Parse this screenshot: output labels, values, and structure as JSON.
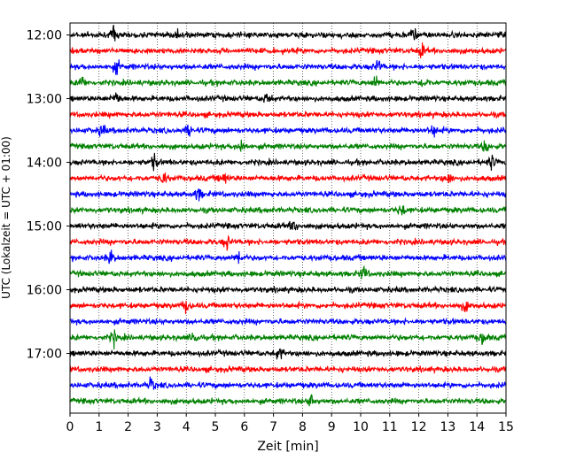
{
  "chart_data": {
    "type": "line",
    "xlabel": "Zeit  [min]",
    "ylabel": "UTC (Lokalzeit = UTC + 01:00)",
    "xlim": [
      0,
      15
    ],
    "x_ticks": [
      "0",
      "1",
      "2",
      "3",
      "4",
      "5",
      "6",
      "7",
      "8",
      "9",
      "10",
      "11",
      "12",
      "13",
      "14",
      "15"
    ],
    "y_ticks": [
      "12:00",
      "13:00",
      "14:00",
      "15:00",
      "16:00",
      "17:00"
    ],
    "grid": "vertical dotted",
    "trace_colors": [
      "#000000",
      "#ff0000",
      "#0000ff",
      "#008000"
    ],
    "traces": [
      {
        "start": "12:00",
        "color": "#000000",
        "events_min": [
          1.5,
          3.7,
          11.8
        ]
      },
      {
        "start": "12:15",
        "color": "#ff0000",
        "events_min": [
          12.1
        ]
      },
      {
        "start": "12:30",
        "color": "#0000ff",
        "events_min": [
          1.6,
          10.6
        ]
      },
      {
        "start": "12:45",
        "color": "#008000",
        "events_min": [
          0.4,
          10.5,
          12.2
        ]
      },
      {
        "start": "13:00",
        "color": "#000000",
        "events_min": [
          1.6,
          6.8
        ]
      },
      {
        "start": "13:15",
        "color": "#ff0000",
        "events_min": []
      },
      {
        "start": "13:30",
        "color": "#0000ff",
        "events_min": [
          1.1,
          4.1,
          12.5
        ]
      },
      {
        "start": "13:45",
        "color": "#008000",
        "events_min": [
          5.9,
          14.3
        ]
      },
      {
        "start": "14:00",
        "color": "#000000",
        "events_min": [
          2.9,
          14.5
        ]
      },
      {
        "start": "14:15",
        "color": "#ff0000",
        "events_min": [
          3.2,
          5.3,
          13.0
        ]
      },
      {
        "start": "14:30",
        "color": "#0000ff",
        "events_min": [
          4.4
        ]
      },
      {
        "start": "14:45",
        "color": "#008000",
        "events_min": [
          11.4
        ]
      },
      {
        "start": "15:00",
        "color": "#000000",
        "events_min": [
          7.7
        ]
      },
      {
        "start": "15:15",
        "color": "#ff0000",
        "events_min": [
          5.4
        ]
      },
      {
        "start": "15:30",
        "color": "#0000ff",
        "events_min": [
          1.4,
          5.8
        ]
      },
      {
        "start": "15:45",
        "color": "#008000",
        "events_min": [
          10.1
        ]
      },
      {
        "start": "16:00",
        "color": "#000000",
        "events_min": []
      },
      {
        "start": "16:15",
        "color": "#ff0000",
        "events_min": [
          4.0,
          13.6
        ]
      },
      {
        "start": "16:30",
        "color": "#0000ff",
        "events_min": []
      },
      {
        "start": "16:45",
        "color": "#008000",
        "events_min": [
          1.5,
          4.3,
          14.2
        ]
      },
      {
        "start": "17:00",
        "color": "#000000",
        "events_min": [
          7.2
        ]
      },
      {
        "start": "17:15",
        "color": "#ff0000",
        "events_min": []
      },
      {
        "start": "17:30",
        "color": "#0000ff",
        "events_min": [
          2.8
        ]
      },
      {
        "start": "17:45",
        "color": "#008000",
        "events_min": [
          8.3
        ]
      }
    ]
  }
}
